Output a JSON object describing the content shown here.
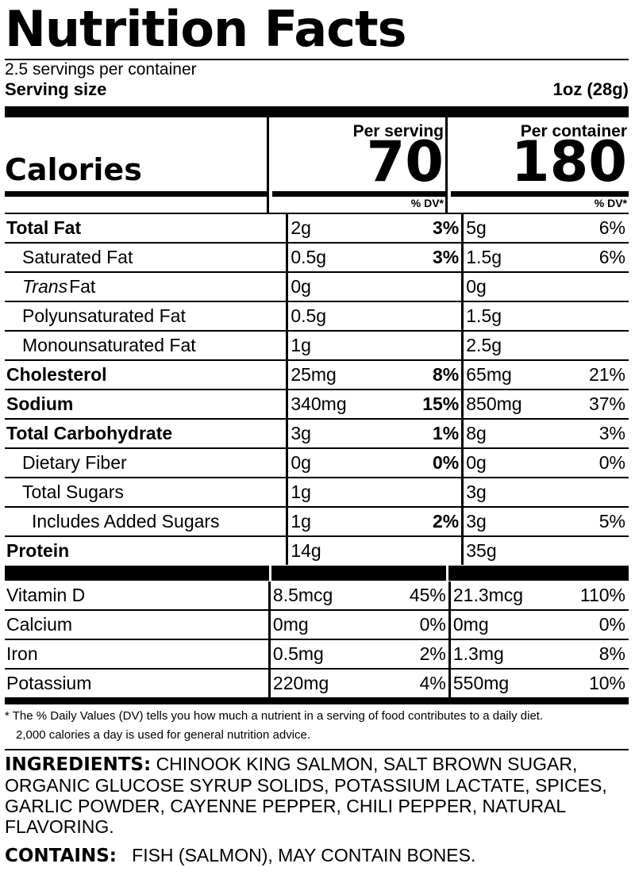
{
  "title": "Nutrition Facts",
  "servings_per_container": "2.5 servings per container",
  "serving_size": {
    "label": "Serving size",
    "value": "1oz (28g)"
  },
  "calories": {
    "label": "Calories",
    "per_serving_header": "Per serving",
    "per_container_header": "Per container",
    "per_serving": "70",
    "per_container": "180",
    "dv_header": "% DV*"
  },
  "nutrients": [
    {
      "name": "Total Fat",
      "bold": true,
      "indent": 0,
      "s_amt": "2g",
      "s_dv": "3%",
      "c_amt": "5g",
      "c_dv": "6%"
    },
    {
      "name": "Saturated Fat",
      "indent": 1,
      "s_amt": "0.5g",
      "s_dv": "3%",
      "c_amt": "1.5g",
      "c_dv": "6%"
    },
    {
      "name": "Trans",
      "name_suffix": "Fat",
      "italic": true,
      "indent": 1,
      "s_amt": "0g",
      "s_dv": "",
      "c_amt": "0g",
      "c_dv": ""
    },
    {
      "name": "Polyunsaturated Fat",
      "indent": 1,
      "s_amt": "0.5g",
      "s_dv": "",
      "c_amt": "1.5g",
      "c_dv": ""
    },
    {
      "name": "Monounsaturated Fat",
      "indent": 1,
      "s_amt": "1g",
      "s_dv": "",
      "c_amt": "2.5g",
      "c_dv": ""
    },
    {
      "name": "Cholesterol",
      "bold": true,
      "indent": 0,
      "s_amt": "25mg",
      "s_dv": "8%",
      "c_amt": "65mg",
      "c_dv": "21%"
    },
    {
      "name": "Sodium",
      "bold": true,
      "indent": 0,
      "s_amt": "340mg",
      "s_dv": "15%",
      "c_amt": "850mg",
      "c_dv": "37%"
    },
    {
      "name": "Total Carbohydrate",
      "bold": true,
      "indent": 0,
      "s_amt": "3g",
      "s_dv": "1%",
      "c_amt": "8g",
      "c_dv": "3%"
    },
    {
      "name": "Dietary Fiber",
      "indent": 1,
      "s_amt": "0g",
      "s_dv": "0%",
      "c_amt": "0g",
      "c_dv": "0%"
    },
    {
      "name": "Total Sugars",
      "indent": 1,
      "s_amt": "1g",
      "s_dv": "",
      "c_amt": "3g",
      "c_dv": ""
    },
    {
      "name": "Includes Added Sugars",
      "indent": 2,
      "s_amt": "1g",
      "s_dv": "2%",
      "c_amt": "3g",
      "c_dv": "5%"
    },
    {
      "name": "Protein",
      "bold": true,
      "indent": 0,
      "s_amt": "14g",
      "s_dv": "",
      "c_amt": "35g",
      "c_dv": ""
    }
  ],
  "vitamins": [
    {
      "name": "Vitamin D",
      "s_amt": "8.5mcg",
      "s_dv": "45%",
      "c_amt": "21.3mcg",
      "c_dv": "110%"
    },
    {
      "name": "Calcium",
      "s_amt": "0mg",
      "s_dv": "0%",
      "c_amt": "0mg",
      "c_dv": "0%"
    },
    {
      "name": "Iron",
      "s_amt": "0.5mg",
      "s_dv": "2%",
      "c_amt": "1.3mg",
      "c_dv": "8%"
    },
    {
      "name": "Potassium",
      "s_amt": "220mg",
      "s_dv": "4%",
      "c_amt": "550mg",
      "c_dv": "10%"
    }
  ],
  "footnote": [
    "* The % Daily Values (DV) tells you how much a nutrient in a serving of food contributes to a daily diet.",
    "2,000 calories a day is used for general nutrition advice."
  ],
  "ingredients": {
    "label": "INGREDIENTS:",
    "text": "CHINOOK KING SALMON, SALT BROWN SUGAR, ORGANIC GLUCOSE SYRUP SOLIDS, POTASSIUM LACTATE, SPICES, GARLIC POWDER, CAYENNE PEPPER, CHILI PEPPER, NATURAL FLAVORING."
  },
  "contains": {
    "label": "CONTAINS:",
    "text": "FISH (SALMON), MAY CONTAIN BONES."
  }
}
